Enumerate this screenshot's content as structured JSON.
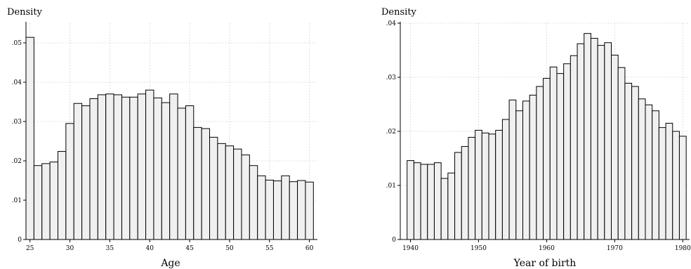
{
  "chart_data": [
    {
      "type": "bar",
      "title": "",
      "ylabel": "Density",
      "xlabel": "Age",
      "ylim": [
        0,
        0.055
      ],
      "xlim": [
        24.5,
        61
      ],
      "yticks": [
        0,
        0.01,
        0.02,
        0.03,
        0.04,
        0.05
      ],
      "ytick_labels": [
        "0",
        ".01",
        ".02",
        ".03",
        ".04",
        ".05"
      ],
      "xticks": [
        25,
        30,
        35,
        40,
        45,
        50,
        55,
        60
      ],
      "xtick_labels": [
        "25",
        "30",
        "35",
        "40",
        "45",
        "50",
        "55",
        "60"
      ],
      "grid": true,
      "bin_width": 1,
      "x": [
        25,
        26,
        27,
        28,
        29,
        30,
        31,
        32,
        33,
        34,
        35,
        36,
        37,
        38,
        39,
        40,
        41,
        42,
        43,
        44,
        45,
        46,
        47,
        48,
        49,
        50,
        51,
        52,
        53,
        54,
        55,
        56,
        57,
        58,
        59,
        60
      ],
      "values": [
        0.0514,
        0.0188,
        0.0193,
        0.0197,
        0.0224,
        0.0295,
        0.0346,
        0.034,
        0.0358,
        0.0368,
        0.037,
        0.0368,
        0.0362,
        0.0362,
        0.037,
        0.038,
        0.036,
        0.0348,
        0.037,
        0.0334,
        0.034,
        0.0285,
        0.0282,
        0.026,
        0.0244,
        0.0238,
        0.023,
        0.0215,
        0.0188,
        0.0162,
        0.0151,
        0.0149,
        0.0162,
        0.0147,
        0.015,
        0.0146
      ]
    },
    {
      "type": "bar",
      "title": "",
      "ylabel": "Density",
      "xlabel": "Year of birth",
      "ylim": [
        0,
        0.04
      ],
      "xlim": [
        1938.5,
        1981
      ],
      "yticks": [
        0,
        0.01,
        0.02,
        0.03,
        0.04
      ],
      "ytick_labels": [
        "0",
        ".01",
        ".02",
        ".03",
        ".04"
      ],
      "xticks": [
        1940,
        1950,
        1960,
        1970,
        1980
      ],
      "xtick_labels": [
        "1940",
        "1950",
        "1960",
        "1970",
        "1980"
      ],
      "grid": true,
      "bin_width": 1,
      "x": [
        1940,
        1941,
        1942,
        1943,
        1944,
        1945,
        1946,
        1947,
        1948,
        1949,
        1950,
        1951,
        1952,
        1953,
        1954,
        1955,
        1956,
        1957,
        1958,
        1959,
        1960,
        1961,
        1962,
        1963,
        1964,
        1965,
        1966,
        1967,
        1968,
        1969,
        1970,
        1971,
        1972,
        1973,
        1974,
        1975,
        1976,
        1977,
        1978,
        1979,
        1980
      ],
      "values": [
        0.0146,
        0.0142,
        0.0139,
        0.0139,
        0.0142,
        0.0113,
        0.0123,
        0.0161,
        0.0172,
        0.0189,
        0.0202,
        0.0197,
        0.0195,
        0.0202,
        0.0222,
        0.0258,
        0.0238,
        0.0256,
        0.0267,
        0.0283,
        0.0298,
        0.0319,
        0.0307,
        0.0325,
        0.034,
        0.0362,
        0.0381,
        0.0372,
        0.0359,
        0.0364,
        0.0341,
        0.0318,
        0.0289,
        0.0283,
        0.026,
        0.0249,
        0.0238,
        0.0207,
        0.0215,
        0.02,
        0.0191
      ]
    }
  ]
}
